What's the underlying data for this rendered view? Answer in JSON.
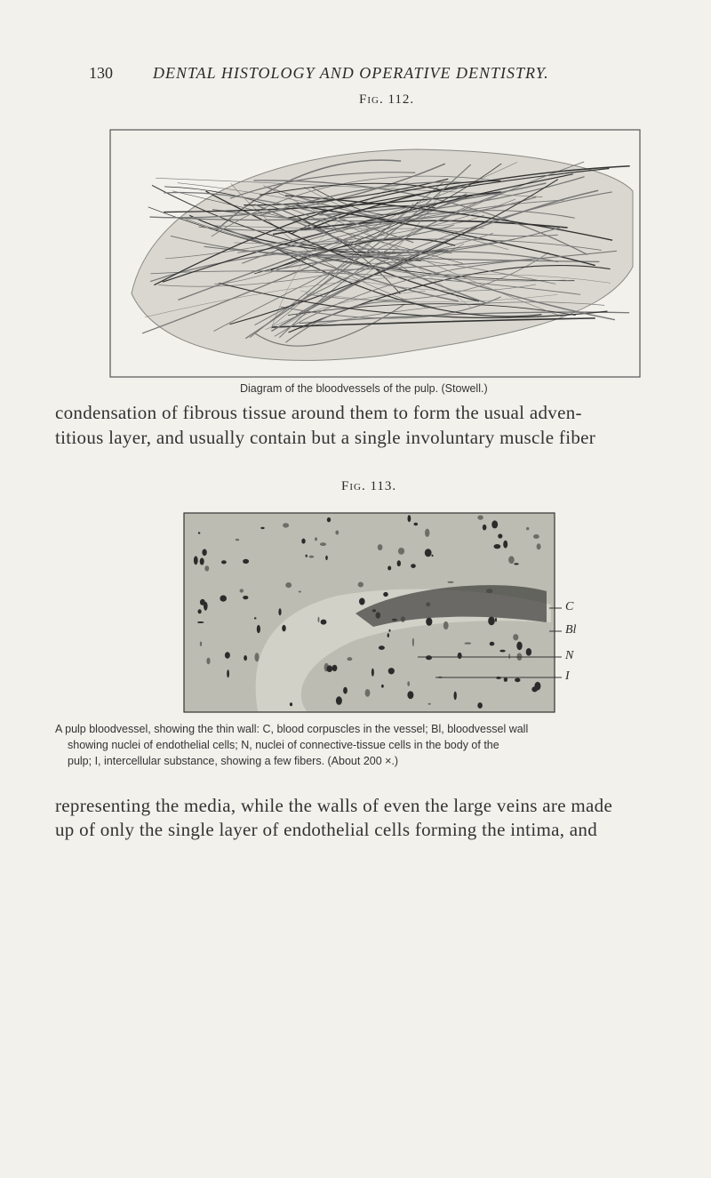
{
  "header": {
    "page_number": "130",
    "running_title": "DENTAL HISTOLOGY AND OPERATIVE DENTISTRY."
  },
  "figure_112": {
    "label": "Fig. 112.",
    "caption": "Diagram of the bloodvessels of the pulp. (Stowell.)"
  },
  "paragraph_1": [
    "condensation of fibrous tissue around them to form the usual adven-",
    "titious layer, and usually contain but a single involuntary muscle fiber"
  ],
  "figure_113": {
    "label": "Fig. 113.",
    "annotations": [
      "C",
      "Bl",
      "N",
      "I"
    ],
    "caption": [
      "A pulp bloodvessel, showing the thin wall: C, blood corpuscles in the vessel; Bl, bloodvessel wall",
      "showing nuclei of endothelial cells; N, nuclei of connective-tissue cells in the body of the",
      "pulp; I, intercellular substance, showing a few fibers. (About 200 ×.)"
    ]
  },
  "paragraph_2": [
    "representing the media, while the walls of even the large veins are made",
    "up of only the single layer of endothelial cells forming the intima, and"
  ]
}
